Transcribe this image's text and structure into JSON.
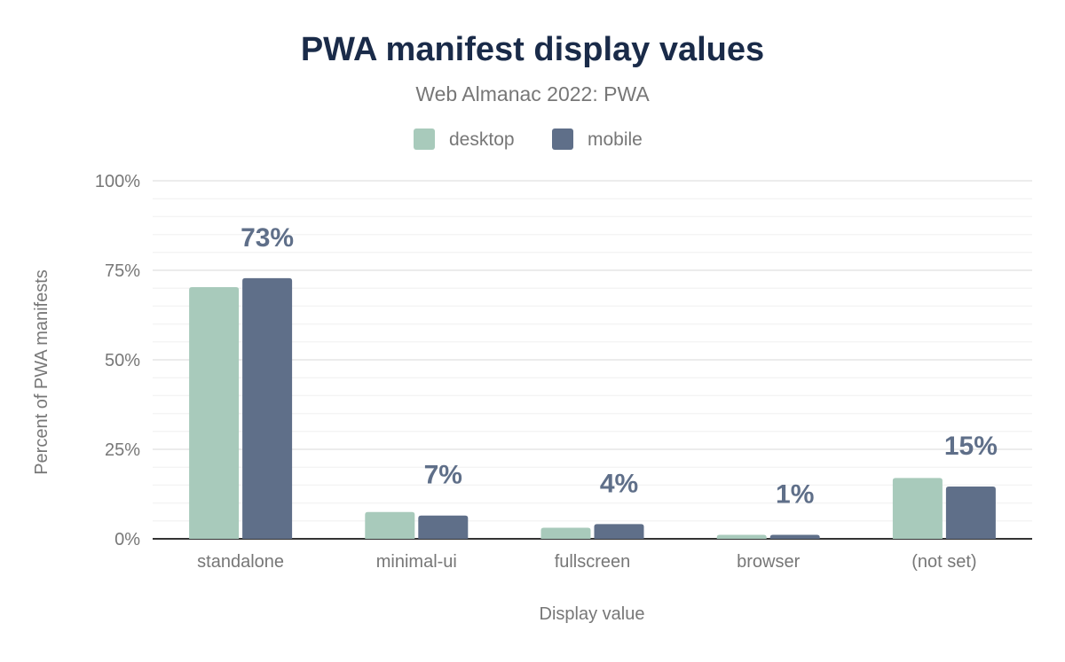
{
  "chart_data": {
    "type": "bar",
    "title": "PWA manifest display values",
    "subtitle": "Web Almanac 2022: PWA",
    "xlabel": "Display value",
    "ylabel": "Percent of PWA manifests",
    "categories": [
      "standalone",
      "minimal-ui",
      "fullscreen",
      "browser",
      "(not set)"
    ],
    "series": [
      {
        "name": "desktop",
        "color": "#a8cabb",
        "values": [
          70.3,
          7.5,
          3.1,
          1.1,
          17.0
        ]
      },
      {
        "name": "mobile",
        "color": "#5f6f89",
        "values": [
          72.8,
          6.5,
          4.1,
          1.1,
          14.6
        ]
      }
    ],
    "data_labels": [
      "73%",
      "7%",
      "4%",
      "1%",
      "15%"
    ],
    "ylim": [
      0,
      100
    ],
    "yticks": [
      "0%",
      "25%",
      "50%",
      "75%",
      "100%"
    ],
    "grid": true,
    "legend": "top-center",
    "title_color": "#1a2b49",
    "label_color": "#5f6f89"
  }
}
